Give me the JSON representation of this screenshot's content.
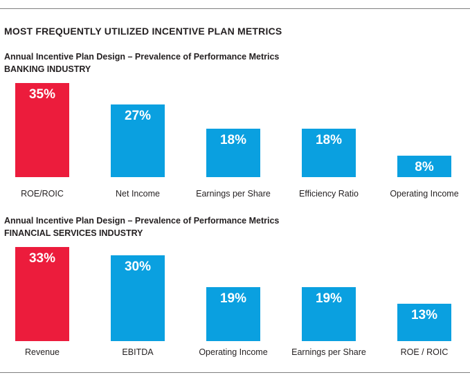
{
  "title": "MOST FREQUENTLY UTILIZED INCENTIVE PLAN METRICS",
  "colors": {
    "highlight": "#ec1c3c",
    "bar": "#0aa0e0",
    "label_text": "#231f20",
    "value_text": "#ffffff",
    "rule": "#7f7f7f"
  },
  "chart_data": [
    {
      "type": "bar",
      "title": "Annual Incentive Plan Design – Prevalence of Performance Metrics",
      "subtitle": "BANKING INDUSTRY",
      "categories": [
        "ROE/ROIC",
        "Net Income",
        "Earnings per Share",
        "Efficiency Ratio",
        "Operating Income"
      ],
      "values": [
        35,
        27,
        18,
        18,
        8
      ],
      "value_labels": [
        "35%",
        "27%",
        "18%",
        "18%",
        "8%"
      ],
      "highlight_index": 0,
      "xlabel": "",
      "ylabel": "",
      "ylim": [
        0,
        35
      ],
      "grid": false,
      "legend": "none"
    },
    {
      "type": "bar",
      "title": "Annual Incentive Plan Design – Prevalence of Performance Metrics",
      "subtitle": "FINANCIAL SERVICES INDUSTRY",
      "categories": [
        "Revenue",
        "EBITDA",
        "Operating Income",
        "Earnings per Share",
        "ROE / ROIC"
      ],
      "values": [
        33,
        30,
        19,
        19,
        13
      ],
      "value_labels": [
        "33%",
        "30%",
        "19%",
        "19%",
        "13%"
      ],
      "highlight_index": 0,
      "xlabel": "",
      "ylabel": "",
      "ylim": [
        0,
        33
      ],
      "grid": false,
      "legend": "none"
    }
  ]
}
